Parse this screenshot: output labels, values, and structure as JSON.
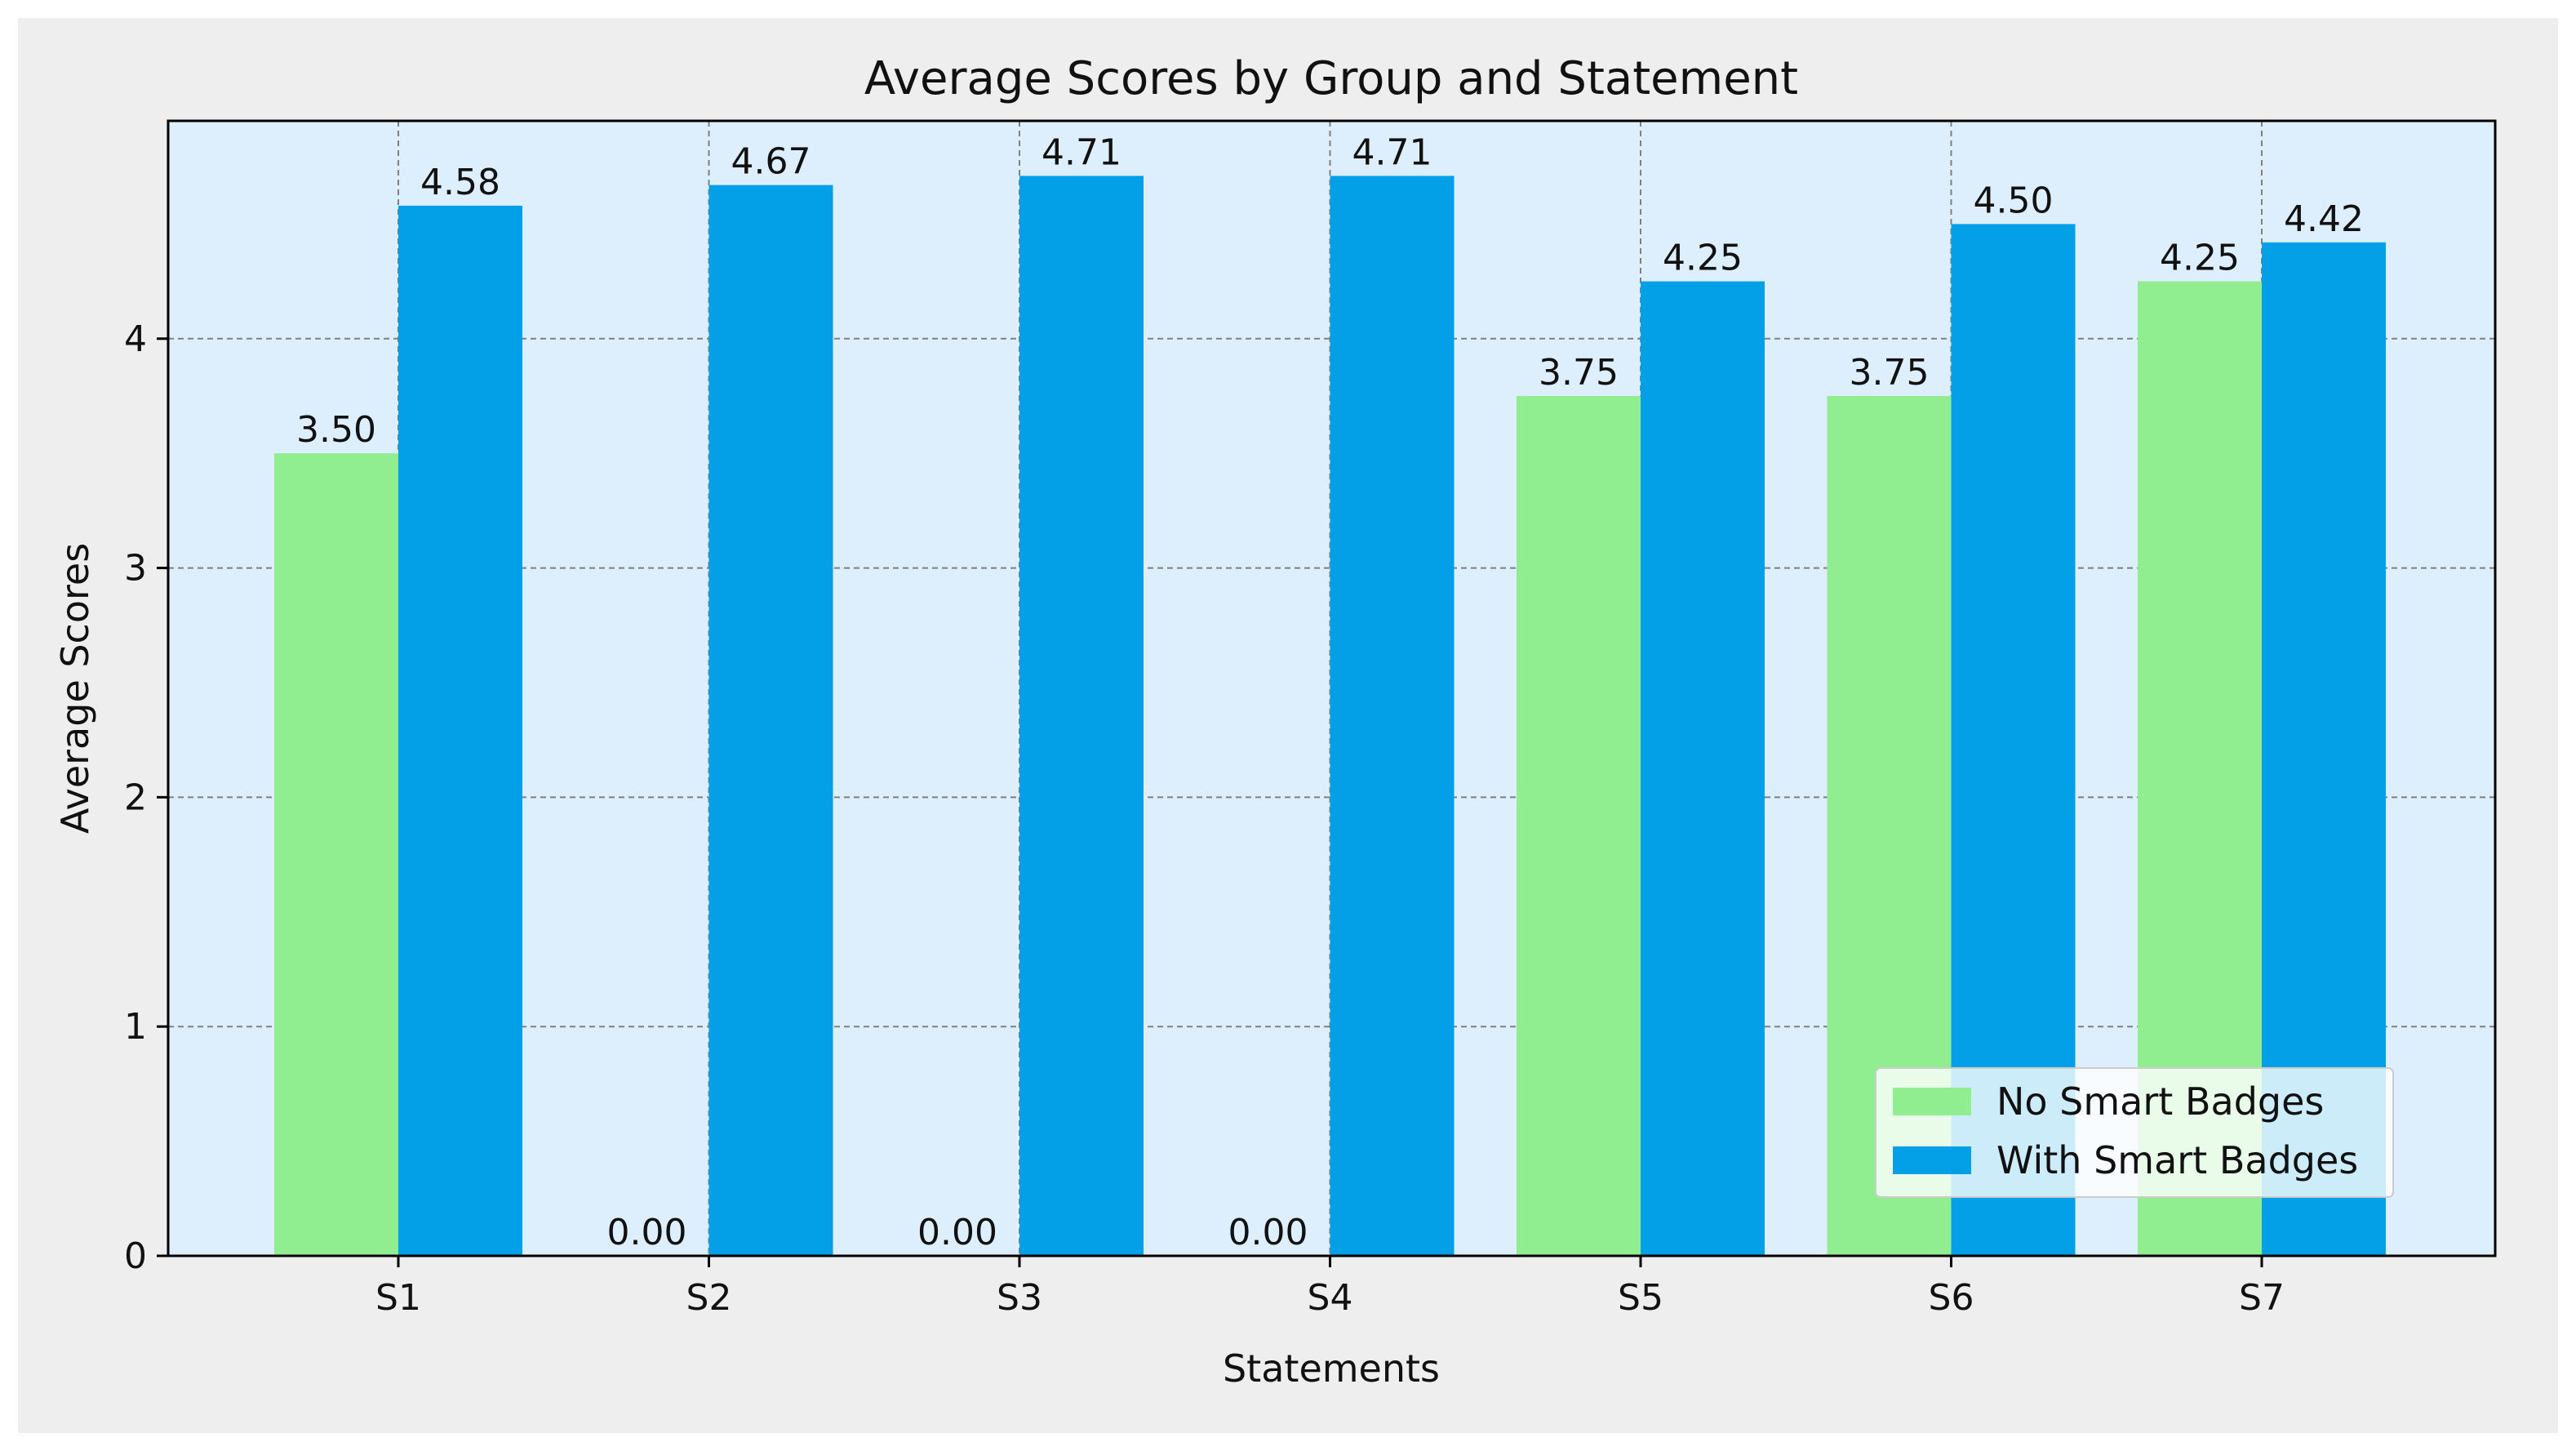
{
  "chart_data": {
    "type": "bar",
    "title": "Average Scores by Group and Statement",
    "xlabel": "Statements",
    "ylabel": "Average Scores",
    "categories": [
      "S1",
      "S2",
      "S3",
      "S4",
      "S5",
      "S6",
      "S7"
    ],
    "series": [
      {
        "name": "No Smart Badges",
        "color": "#90ee90",
        "values": [
          3.5,
          0.0,
          0.0,
          0.0,
          3.75,
          3.75,
          4.25
        ],
        "labels": [
          "3.50",
          "0.00",
          "0.00",
          "0.00",
          "3.75",
          "3.75",
          "4.25"
        ]
      },
      {
        "name": "With Smart Badges",
        "color": "#039fe7",
        "values": [
          4.58,
          4.67,
          4.71,
          4.71,
          4.25,
          4.5,
          4.42
        ],
        "labels": [
          "4.58",
          "4.67",
          "4.71",
          "4.71",
          "4.25",
          "4.50",
          "4.42"
        ]
      }
    ],
    "ylim": [
      0,
      4.95
    ],
    "yticks": [
      0,
      1,
      2,
      3,
      4
    ],
    "grid": true,
    "legend_position": "lower-right",
    "plot_background": "#ddeefc",
    "figure_background": "#eeeeee"
  }
}
